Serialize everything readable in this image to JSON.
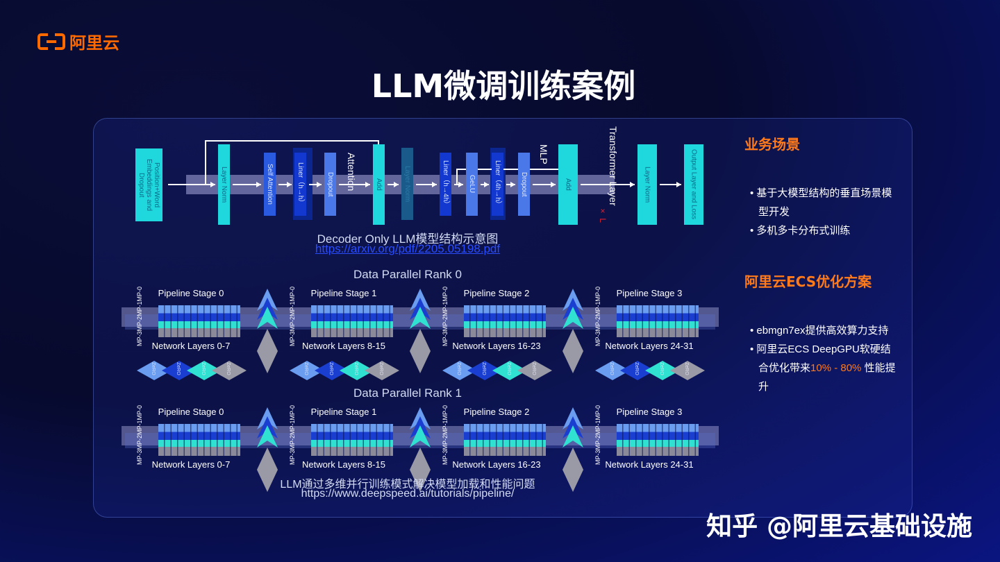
{
  "logo": {
    "text": "阿里云",
    "color": "#ff6a00"
  },
  "title": "LLM微调训练案例",
  "transformer": {
    "blocks": [
      "Position+Word Embeddings and Dropout",
      "Layer Norm",
      "Self Attention",
      "Liner（h→h）",
      "Dropout",
      "Add",
      "Layer Norm",
      "Liner（h→4h）",
      "GeLU",
      "Liner（4h→h）",
      "Dropout",
      "Add",
      "Layer Norm",
      "Output Layer and Loss"
    ],
    "labels": {
      "attention": "Attention",
      "mlp": "MLP",
      "transformer_layer": "Transformer Layer",
      "times_l": "× L"
    },
    "caption": "Decoder Only LLM模型结构示意图",
    "link": "https://arxiv.org/pdf/2205.05198.pdf"
  },
  "pipeline": {
    "ranks": [
      {
        "label": "Data Parallel Rank 0",
        "stages": [
          {
            "label": "Pipeline Stage 0",
            "layers": "Network Layers 0-7"
          },
          {
            "label": "Pipeline Stage 1",
            "layers": "Network Layers 8-15"
          },
          {
            "label": "Pipeline Stage 2",
            "layers": "Network Layers 16-23"
          },
          {
            "label": "Pipeline Stage 3",
            "layers": "Network Layers 24-31"
          }
        ]
      },
      {
        "label": "Data Parallel Rank 1",
        "stages": [
          {
            "label": "Pipeline Stage 0",
            "layers": "Network Layers 0-7"
          },
          {
            "label": "Pipeline Stage 1",
            "layers": "Network Layers 8-15"
          },
          {
            "label": "Pipeline Stage 2",
            "layers": "Network Layers 16-23"
          },
          {
            "label": "Pipeline Stage 3",
            "layers": "Network Layers 24-31"
          }
        ]
      }
    ],
    "mp_label": "MP-3MP-2MP-1MP-0",
    "zero_label": "ZeRO",
    "caption": "LLM通过多维并行训练模式解决模型加载和性能问题",
    "link": "https://www.deepspeed.ai/tutorials/pipeline/"
  },
  "side": {
    "scenario_title": "业务场景",
    "scenario_items": [
      "基于大模型结构的垂直场景模型开发",
      "多机多卡分布式训练"
    ],
    "solution_title": "阿里云ECS优化方案",
    "solution_item1": "ebmgn7ex提供高效算力支持",
    "solution_item2_pre": "阿里云ECS DeepGPU软硬结合优化带来",
    "solution_item2_highlight": "10% - 80%",
    "solution_item2_post": "性能提升",
    "accent": "#ff7a1a"
  },
  "watermark": "知乎 @阿里云基础设施"
}
